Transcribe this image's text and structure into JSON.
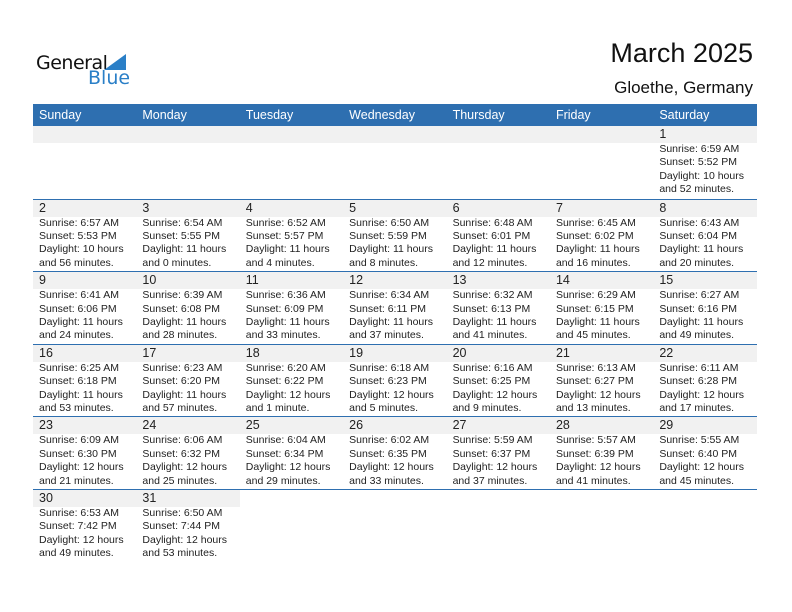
{
  "logo": {
    "text1": "General",
    "text2": "Blue"
  },
  "header": {
    "title": "March 2025",
    "location": "Gloethe, Germany"
  },
  "weekdays": [
    "Sunday",
    "Monday",
    "Tuesday",
    "Wednesday",
    "Thursday",
    "Friday",
    "Saturday"
  ],
  "colors": {
    "accent": "#2e6fb0",
    "band": "#f1f1f1"
  },
  "weeks": [
    [
      null,
      null,
      null,
      null,
      null,
      null,
      {
        "day": "1",
        "sunrise": "Sunrise: 6:59 AM",
        "sunset": "Sunset: 5:52 PM",
        "daylight": "Daylight: 10 hours",
        "minutes": "and 52 minutes."
      }
    ],
    [
      {
        "day": "2",
        "sunrise": "Sunrise: 6:57 AM",
        "sunset": "Sunset: 5:53 PM",
        "daylight": "Daylight: 10 hours",
        "minutes": "and 56 minutes."
      },
      {
        "day": "3",
        "sunrise": "Sunrise: 6:54 AM",
        "sunset": "Sunset: 5:55 PM",
        "daylight": "Daylight: 11 hours",
        "minutes": "and 0 minutes."
      },
      {
        "day": "4",
        "sunrise": "Sunrise: 6:52 AM",
        "sunset": "Sunset: 5:57 PM",
        "daylight": "Daylight: 11 hours",
        "minutes": "and 4 minutes."
      },
      {
        "day": "5",
        "sunrise": "Sunrise: 6:50 AM",
        "sunset": "Sunset: 5:59 PM",
        "daylight": "Daylight: 11 hours",
        "minutes": "and 8 minutes."
      },
      {
        "day": "6",
        "sunrise": "Sunrise: 6:48 AM",
        "sunset": "Sunset: 6:01 PM",
        "daylight": "Daylight: 11 hours",
        "minutes": "and 12 minutes."
      },
      {
        "day": "7",
        "sunrise": "Sunrise: 6:45 AM",
        "sunset": "Sunset: 6:02 PM",
        "daylight": "Daylight: 11 hours",
        "minutes": "and 16 minutes."
      },
      {
        "day": "8",
        "sunrise": "Sunrise: 6:43 AM",
        "sunset": "Sunset: 6:04 PM",
        "daylight": "Daylight: 11 hours",
        "minutes": "and 20 minutes."
      }
    ],
    [
      {
        "day": "9",
        "sunrise": "Sunrise: 6:41 AM",
        "sunset": "Sunset: 6:06 PM",
        "daylight": "Daylight: 11 hours",
        "minutes": "and 24 minutes."
      },
      {
        "day": "10",
        "sunrise": "Sunrise: 6:39 AM",
        "sunset": "Sunset: 6:08 PM",
        "daylight": "Daylight: 11 hours",
        "minutes": "and 28 minutes."
      },
      {
        "day": "11",
        "sunrise": "Sunrise: 6:36 AM",
        "sunset": "Sunset: 6:09 PM",
        "daylight": "Daylight: 11 hours",
        "minutes": "and 33 minutes."
      },
      {
        "day": "12",
        "sunrise": "Sunrise: 6:34 AM",
        "sunset": "Sunset: 6:11 PM",
        "daylight": "Daylight: 11 hours",
        "minutes": "and 37 minutes."
      },
      {
        "day": "13",
        "sunrise": "Sunrise: 6:32 AM",
        "sunset": "Sunset: 6:13 PM",
        "daylight": "Daylight: 11 hours",
        "minutes": "and 41 minutes."
      },
      {
        "day": "14",
        "sunrise": "Sunrise: 6:29 AM",
        "sunset": "Sunset: 6:15 PM",
        "daylight": "Daylight: 11 hours",
        "minutes": "and 45 minutes."
      },
      {
        "day": "15",
        "sunrise": "Sunrise: 6:27 AM",
        "sunset": "Sunset: 6:16 PM",
        "daylight": "Daylight: 11 hours",
        "minutes": "and 49 minutes."
      }
    ],
    [
      {
        "day": "16",
        "sunrise": "Sunrise: 6:25 AM",
        "sunset": "Sunset: 6:18 PM",
        "daylight": "Daylight: 11 hours",
        "minutes": "and 53 minutes."
      },
      {
        "day": "17",
        "sunrise": "Sunrise: 6:23 AM",
        "sunset": "Sunset: 6:20 PM",
        "daylight": "Daylight: 11 hours",
        "minutes": "and 57 minutes."
      },
      {
        "day": "18",
        "sunrise": "Sunrise: 6:20 AM",
        "sunset": "Sunset: 6:22 PM",
        "daylight": "Daylight: 12 hours",
        "minutes": "and 1 minute."
      },
      {
        "day": "19",
        "sunrise": "Sunrise: 6:18 AM",
        "sunset": "Sunset: 6:23 PM",
        "daylight": "Daylight: 12 hours",
        "minutes": "and 5 minutes."
      },
      {
        "day": "20",
        "sunrise": "Sunrise: 6:16 AM",
        "sunset": "Sunset: 6:25 PM",
        "daylight": "Daylight: 12 hours",
        "minutes": "and 9 minutes."
      },
      {
        "day": "21",
        "sunrise": "Sunrise: 6:13 AM",
        "sunset": "Sunset: 6:27 PM",
        "daylight": "Daylight: 12 hours",
        "minutes": "and 13 minutes."
      },
      {
        "day": "22",
        "sunrise": "Sunrise: 6:11 AM",
        "sunset": "Sunset: 6:28 PM",
        "daylight": "Daylight: 12 hours",
        "minutes": "and 17 minutes."
      }
    ],
    [
      {
        "day": "23",
        "sunrise": "Sunrise: 6:09 AM",
        "sunset": "Sunset: 6:30 PM",
        "daylight": "Daylight: 12 hours",
        "minutes": "and 21 minutes."
      },
      {
        "day": "24",
        "sunrise": "Sunrise: 6:06 AM",
        "sunset": "Sunset: 6:32 PM",
        "daylight": "Daylight: 12 hours",
        "minutes": "and 25 minutes."
      },
      {
        "day": "25",
        "sunrise": "Sunrise: 6:04 AM",
        "sunset": "Sunset: 6:34 PM",
        "daylight": "Daylight: 12 hours",
        "minutes": "and 29 minutes."
      },
      {
        "day": "26",
        "sunrise": "Sunrise: 6:02 AM",
        "sunset": "Sunset: 6:35 PM",
        "daylight": "Daylight: 12 hours",
        "minutes": "and 33 minutes."
      },
      {
        "day": "27",
        "sunrise": "Sunrise: 5:59 AM",
        "sunset": "Sunset: 6:37 PM",
        "daylight": "Daylight: 12 hours",
        "minutes": "and 37 minutes."
      },
      {
        "day": "28",
        "sunrise": "Sunrise: 5:57 AM",
        "sunset": "Sunset: 6:39 PM",
        "daylight": "Daylight: 12 hours",
        "minutes": "and 41 minutes."
      },
      {
        "day": "29",
        "sunrise": "Sunrise: 5:55 AM",
        "sunset": "Sunset: 6:40 PM",
        "daylight": "Daylight: 12 hours",
        "minutes": "and 45 minutes."
      }
    ],
    [
      {
        "day": "30",
        "sunrise": "Sunrise: 6:53 AM",
        "sunset": "Sunset: 7:42 PM",
        "daylight": "Daylight: 12 hours",
        "minutes": "and 49 minutes."
      },
      {
        "day": "31",
        "sunrise": "Sunrise: 6:50 AM",
        "sunset": "Sunset: 7:44 PM",
        "daylight": "Daylight: 12 hours",
        "minutes": "and 53 minutes."
      },
      null,
      null,
      null,
      null,
      null
    ]
  ]
}
